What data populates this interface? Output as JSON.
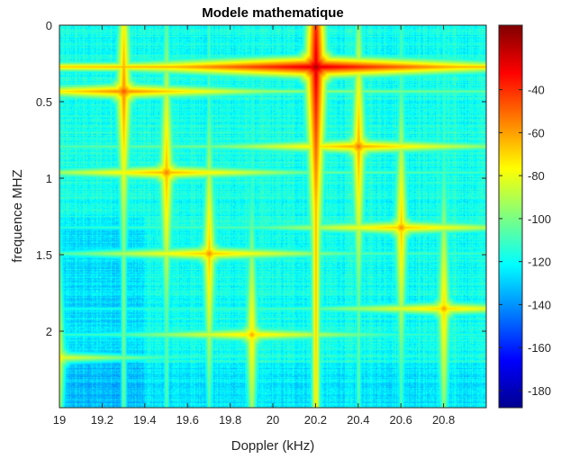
{
  "chart_data": {
    "type": "heatmap",
    "title": "Modele mathematique",
    "xlabel": "Doppler (kHz)",
    "ylabel": "frequence MHZ",
    "xlim": [
      19.0,
      21.0
    ],
    "ylim": [
      0.0,
      2.5
    ],
    "y_reversed": true,
    "x_ticks": [
      19,
      19.2,
      19.4,
      19.6,
      19.8,
      20,
      20.2,
      20.4,
      20.6,
      20.8
    ],
    "x_tick_labels": [
      "19",
      "19.2",
      "19.4",
      "19.6",
      "19.8",
      "20",
      "20.2",
      "20.4",
      "20.6",
      "20.8"
    ],
    "y_ticks": [
      0,
      0.5,
      1,
      1.5,
      2
    ],
    "y_tick_labels": [
      "0",
      "0.5",
      "1",
      "1.5",
      "2"
    ],
    "colormap": "jet",
    "clim": [
      -188,
      -10
    ],
    "colorbar_ticks": [
      -40,
      -60,
      -80,
      -100,
      -120,
      -140,
      -160,
      -180
    ],
    "colorbar_tick_labels": [
      "-40",
      "-60",
      "-80",
      "-100",
      "-120",
      "-140",
      "-160",
      "-180"
    ],
    "background_level": -118,
    "peaks": [
      {
        "x": 20.2,
        "y": 0.27,
        "value": -15
      },
      {
        "x": 19.3,
        "y": 0.43,
        "value": -45
      },
      {
        "x": 20.4,
        "y": 0.79,
        "value": -50
      },
      {
        "x": 19.5,
        "y": 0.96,
        "value": -52
      },
      {
        "x": 20.6,
        "y": 1.32,
        "value": -55
      },
      {
        "x": 19.7,
        "y": 1.49,
        "value": -55
      },
      {
        "x": 20.8,
        "y": 1.85,
        "value": -58
      },
      {
        "x": 19.9,
        "y": 2.02,
        "value": -60
      },
      {
        "x": 19.0,
        "y": 2.17,
        "value": -70
      }
    ]
  }
}
